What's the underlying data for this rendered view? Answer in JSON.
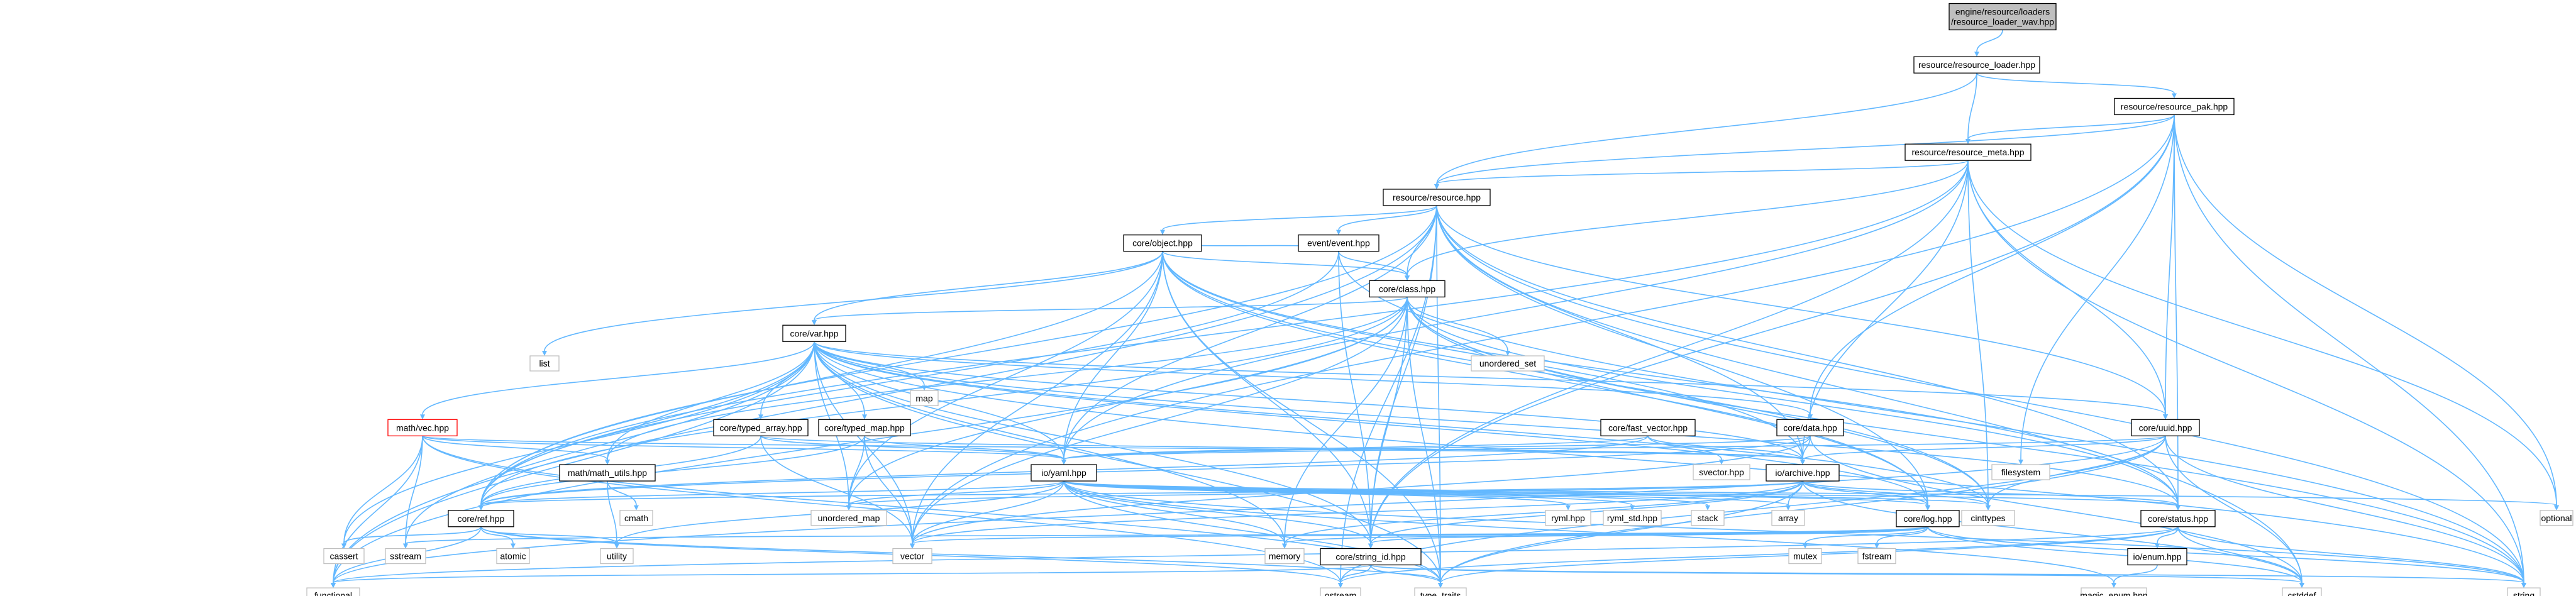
{
  "graph": {
    "edge_color": "#63b8ff",
    "root_fill": "#bfbfbf",
    "external_border": "#bfbfbf",
    "broken_border": "#ff0000",
    "nodes": [
      {
        "id": "root",
        "lines": [
          "engine/resource/loaders",
          "/resource_loader_wav.hpp"
        ],
        "kind": "root"
      },
      {
        "id": "resource_loader",
        "lines": [
          "resource/resource_loader.hpp"
        ],
        "kind": "project"
      },
      {
        "id": "resource_pak",
        "lines": [
          "resource/resource_pak.hpp"
        ],
        "kind": "project"
      },
      {
        "id": "resource_meta",
        "lines": [
          "resource/resource_meta.hpp"
        ],
        "kind": "project"
      },
      {
        "id": "resource",
        "lines": [
          "resource/resource.hpp"
        ],
        "kind": "project"
      },
      {
        "id": "event",
        "lines": [
          "event/event.hpp"
        ],
        "kind": "project"
      },
      {
        "id": "object",
        "lines": [
          "core/object.hpp"
        ],
        "kind": "project"
      },
      {
        "id": "class",
        "lines": [
          "core/class.hpp"
        ],
        "kind": "project"
      },
      {
        "id": "var",
        "lines": [
          "core/var.hpp"
        ],
        "kind": "project"
      },
      {
        "id": "list",
        "lines": [
          "list"
        ],
        "kind": "external"
      },
      {
        "id": "unordered_set",
        "lines": [
          "unordered_set"
        ],
        "kind": "external"
      },
      {
        "id": "map",
        "lines": [
          "map"
        ],
        "kind": "external"
      },
      {
        "id": "vec",
        "lines": [
          "math/vec.hpp"
        ],
        "kind": "broken"
      },
      {
        "id": "typed_array",
        "lines": [
          "core/typed_array.hpp"
        ],
        "kind": "project"
      },
      {
        "id": "typed_map",
        "lines": [
          "core/typed_map.hpp"
        ],
        "kind": "project"
      },
      {
        "id": "fast_vector",
        "lines": [
          "core/fast_vector.hpp"
        ],
        "kind": "project"
      },
      {
        "id": "data",
        "lines": [
          "core/data.hpp"
        ],
        "kind": "project"
      },
      {
        "id": "uuid",
        "lines": [
          "core/uuid.hpp"
        ],
        "kind": "project"
      },
      {
        "id": "math_utils",
        "lines": [
          "math/math_utils.hpp"
        ],
        "kind": "project"
      },
      {
        "id": "yaml",
        "lines": [
          "io/yaml.hpp"
        ],
        "kind": "project"
      },
      {
        "id": "svector",
        "lines": [
          "svector.hpp"
        ],
        "kind": "external"
      },
      {
        "id": "archive",
        "lines": [
          "io/archive.hpp"
        ],
        "kind": "project"
      },
      {
        "id": "filesystem",
        "lines": [
          "filesystem"
        ],
        "kind": "external"
      },
      {
        "id": "ref",
        "lines": [
          "core/ref.hpp"
        ],
        "kind": "project"
      },
      {
        "id": "cmath",
        "lines": [
          "cmath"
        ],
        "kind": "external"
      },
      {
        "id": "unordered_map",
        "lines": [
          "unordered_map"
        ],
        "kind": "external"
      },
      {
        "id": "ryml",
        "lines": [
          "ryml.hpp"
        ],
        "kind": "external"
      },
      {
        "id": "ryml_std",
        "lines": [
          "ryml_std.hpp"
        ],
        "kind": "external"
      },
      {
        "id": "stack",
        "lines": [
          "stack"
        ],
        "kind": "external"
      },
      {
        "id": "array",
        "lines": [
          "array"
        ],
        "kind": "external"
      },
      {
        "id": "log",
        "lines": [
          "core/log.hpp"
        ],
        "kind": "project"
      },
      {
        "id": "cinttypes",
        "lines": [
          "cinttypes"
        ],
        "kind": "external"
      },
      {
        "id": "status",
        "lines": [
          "core/status.hpp"
        ],
        "kind": "project"
      },
      {
        "id": "optional",
        "lines": [
          "optional"
        ],
        "kind": "external"
      },
      {
        "id": "cassert",
        "lines": [
          "cassert"
        ],
        "kind": "external"
      },
      {
        "id": "sstream",
        "lines": [
          "sstream"
        ],
        "kind": "external"
      },
      {
        "id": "atomic",
        "lines": [
          "atomic"
        ],
        "kind": "external"
      },
      {
        "id": "utility",
        "lines": [
          "utility"
        ],
        "kind": "external"
      },
      {
        "id": "vector",
        "lines": [
          "vector"
        ],
        "kind": "external"
      },
      {
        "id": "memory",
        "lines": [
          "memory"
        ],
        "kind": "external"
      },
      {
        "id": "string_id",
        "lines": [
          "core/string_id.hpp"
        ],
        "kind": "project"
      },
      {
        "id": "mutex",
        "lines": [
          "mutex"
        ],
        "kind": "external"
      },
      {
        "id": "fstream",
        "lines": [
          "fstream"
        ],
        "kind": "external"
      },
      {
        "id": "enum",
        "lines": [
          "io/enum.hpp"
        ],
        "kind": "project"
      },
      {
        "id": "functional",
        "lines": [
          "functional"
        ],
        "kind": "external"
      },
      {
        "id": "ostream",
        "lines": [
          "ostream"
        ],
        "kind": "external"
      },
      {
        "id": "type_traits",
        "lines": [
          "type_traits"
        ],
        "kind": "external"
      },
      {
        "id": "cstddef",
        "lines": [
          "cstddef"
        ],
        "kind": "external"
      },
      {
        "id": "string",
        "lines": [
          "string"
        ],
        "kind": "external"
      },
      {
        "id": "magic_enum",
        "lines": [
          "magic_enum.hpp"
        ],
        "kind": "external"
      }
    ],
    "edges": [
      [
        "root",
        "resource_loader"
      ],
      [
        "resource_loader",
        "resource"
      ],
      [
        "resource_loader",
        "resource_meta"
      ],
      [
        "resource_loader",
        "resource_pak"
      ],
      [
        "resource_pak",
        "resource"
      ],
      [
        "resource_pak",
        "resource_meta"
      ],
      [
        "resource_pak",
        "data"
      ],
      [
        "resource_pak",
        "uuid"
      ],
      [
        "resource_pak",
        "filesystem"
      ],
      [
        "resource_pak",
        "status"
      ],
      [
        "resource_pak",
        "vector"
      ],
      [
        "resource_pak",
        "optional"
      ],
      [
        "resource_pak",
        "string"
      ],
      [
        "resource_pak",
        "string_id"
      ],
      [
        "resource_meta",
        "resource"
      ],
      [
        "resource_meta",
        "class"
      ],
      [
        "resource_meta",
        "uuid"
      ],
      [
        "resource_meta",
        "yaml"
      ],
      [
        "resource_meta",
        "archive"
      ],
      [
        "resource_meta",
        "string_id"
      ],
      [
        "resource_meta",
        "ref"
      ],
      [
        "resource_meta",
        "optional"
      ],
      [
        "resource_meta",
        "string"
      ],
      [
        "resource_meta",
        "cinttypes"
      ],
      [
        "resource",
        "object"
      ],
      [
        "resource",
        "class"
      ],
      [
        "resource",
        "event"
      ],
      [
        "resource",
        "ref"
      ],
      [
        "resource",
        "string_id"
      ],
      [
        "resource",
        "uuid"
      ],
      [
        "resource",
        "yaml"
      ],
      [
        "resource",
        "archive"
      ],
      [
        "resource",
        "log"
      ],
      [
        "resource",
        "status"
      ],
      [
        "resource",
        "functional"
      ],
      [
        "resource",
        "ostream"
      ],
      [
        "resource",
        "string"
      ],
      [
        "resource",
        "cstddef"
      ],
      [
        "resource",
        "type_traits"
      ],
      [
        "event",
        "object"
      ],
      [
        "event",
        "class"
      ],
      [
        "event",
        "ref"
      ],
      [
        "event",
        "string_id"
      ],
      [
        "event",
        "string"
      ],
      [
        "object",
        "class"
      ],
      [
        "object",
        "var"
      ],
      [
        "object",
        "ref"
      ],
      [
        "object",
        "string_id"
      ],
      [
        "object",
        "yaml"
      ],
      [
        "object",
        "archive"
      ],
      [
        "object",
        "list"
      ],
      [
        "object",
        "unordered_map"
      ],
      [
        "object",
        "vector"
      ],
      [
        "object",
        "log"
      ],
      [
        "object",
        "status"
      ],
      [
        "object",
        "type_traits"
      ],
      [
        "object",
        "cinttypes"
      ],
      [
        "class",
        "var"
      ],
      [
        "class",
        "ref"
      ],
      [
        "class",
        "string_id"
      ],
      [
        "class",
        "unordered_set"
      ],
      [
        "class",
        "unordered_map"
      ],
      [
        "class",
        "vector"
      ],
      [
        "class",
        "log"
      ],
      [
        "class",
        "status"
      ],
      [
        "class",
        "memory"
      ],
      [
        "class",
        "functional"
      ],
      [
        "class",
        "string"
      ],
      [
        "class",
        "type_traits"
      ],
      [
        "class",
        "cinttypes"
      ],
      [
        "class",
        "math_utils"
      ],
      [
        "var",
        "vec"
      ],
      [
        "var",
        "typed_array"
      ],
      [
        "var",
        "typed_map"
      ],
      [
        "var",
        "ref"
      ],
      [
        "var",
        "string_id"
      ],
      [
        "var",
        "map"
      ],
      [
        "var",
        "vector"
      ],
      [
        "var",
        "yaml"
      ],
      [
        "var",
        "archive"
      ],
      [
        "var",
        "status"
      ],
      [
        "var",
        "log"
      ],
      [
        "var",
        "memory"
      ],
      [
        "var",
        "cinttypes"
      ],
      [
        "var",
        "functional"
      ],
      [
        "var",
        "string"
      ],
      [
        "var",
        "sstream"
      ],
      [
        "var",
        "cassert"
      ],
      [
        "var",
        "type_traits"
      ],
      [
        "var",
        "uuid"
      ],
      [
        "var",
        "data"
      ],
      [
        "var",
        "math_utils"
      ],
      [
        "var",
        "unordered_map"
      ],
      [
        "vec",
        "math_utils"
      ],
      [
        "vec",
        "yaml"
      ],
      [
        "vec",
        "archive"
      ],
      [
        "vec",
        "cassert"
      ],
      [
        "vec",
        "sstream"
      ],
      [
        "vec",
        "functional"
      ],
      [
        "vec",
        "type_traits"
      ],
      [
        "vec",
        "ostream"
      ],
      [
        "typed_array",
        "ref"
      ],
      [
        "typed_array",
        "vector"
      ],
      [
        "typed_array",
        "yaml"
      ],
      [
        "typed_array",
        "archive"
      ],
      [
        "typed_map",
        "ref"
      ],
      [
        "typed_map",
        "vector"
      ],
      [
        "typed_map",
        "yaml"
      ],
      [
        "typed_map",
        "unordered_map"
      ],
      [
        "fast_vector",
        "svector"
      ],
      [
        "fast_vector",
        "yaml"
      ],
      [
        "fast_vector",
        "archive"
      ],
      [
        "fast_vector",
        "ref"
      ],
      [
        "data",
        "yaml"
      ],
      [
        "data",
        "archive"
      ],
      [
        "data",
        "ref"
      ],
      [
        "data",
        "vector"
      ],
      [
        "data",
        "cstddef"
      ],
      [
        "uuid",
        "yaml"
      ],
      [
        "uuid",
        "archive"
      ],
      [
        "uuid",
        "string"
      ],
      [
        "uuid",
        "cstddef"
      ],
      [
        "uuid",
        "functional"
      ],
      [
        "uuid",
        "ostream"
      ],
      [
        "uuid",
        "cinttypes"
      ],
      [
        "uuid",
        "type_traits"
      ],
      [
        "math_utils",
        "cmath"
      ],
      [
        "math_utils",
        "utility"
      ],
      [
        "yaml",
        "ref"
      ],
      [
        "yaml",
        "ryml"
      ],
      [
        "yaml",
        "ryml_std"
      ],
      [
        "yaml",
        "stack"
      ],
      [
        "yaml",
        "array"
      ],
      [
        "yaml",
        "unordered_map"
      ],
      [
        "yaml",
        "vector"
      ],
      [
        "yaml",
        "string_id"
      ],
      [
        "yaml",
        "status"
      ],
      [
        "yaml",
        "log"
      ],
      [
        "yaml",
        "type_traits"
      ],
      [
        "yaml",
        "string"
      ],
      [
        "yaml",
        "utility"
      ],
      [
        "yaml",
        "cinttypes"
      ],
      [
        "yaml",
        "optional"
      ],
      [
        "yaml",
        "magic_enum"
      ],
      [
        "yaml",
        "memory"
      ],
      [
        "archive",
        "ref"
      ],
      [
        "archive",
        "status"
      ],
      [
        "archive",
        "string_id"
      ],
      [
        "archive",
        "array"
      ],
      [
        "archive",
        "vector"
      ],
      [
        "archive",
        "unordered_map"
      ],
      [
        "archive",
        "cinttypes"
      ],
      [
        "archive",
        "log"
      ],
      [
        "archive",
        "cstddef"
      ],
      [
        "archive",
        "memory"
      ],
      [
        "archive",
        "type_traits"
      ],
      [
        "ref",
        "cassert"
      ],
      [
        "ref",
        "atomic"
      ],
      [
        "ref",
        "utility"
      ],
      [
        "ref",
        "functional"
      ],
      [
        "ref",
        "type_traits"
      ],
      [
        "ref",
        "ostream"
      ],
      [
        "log",
        "string_id"
      ],
      [
        "log",
        "vector"
      ],
      [
        "log",
        "memory"
      ],
      [
        "log",
        "mutex"
      ],
      [
        "log",
        "fstream"
      ],
      [
        "log",
        "sstream"
      ],
      [
        "log",
        "string"
      ],
      [
        "log",
        "cstddef"
      ],
      [
        "status",
        "enum"
      ],
      [
        "status",
        "string"
      ],
      [
        "status",
        "cstddef"
      ],
      [
        "status",
        "functional"
      ],
      [
        "status",
        "ostream"
      ],
      [
        "status",
        "type_traits"
      ],
      [
        "string_id",
        "functional"
      ],
      [
        "string_id",
        "ostream"
      ],
      [
        "string_id",
        "type_traits"
      ],
      [
        "string_id",
        "cstddef"
      ],
      [
        "string_id",
        "string"
      ],
      [
        "enum",
        "magic_enum"
      ]
    ]
  }
}
